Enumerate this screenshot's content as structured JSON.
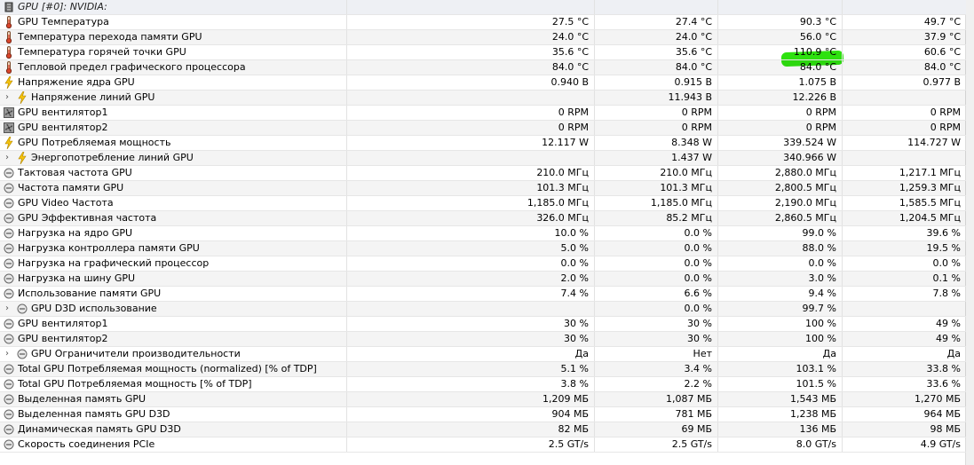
{
  "header": {
    "title": "GPU [#0]: NVIDIA:"
  },
  "icon_legend": {
    "chip": "gpu-chip-icon",
    "thermo": "thermometer-icon",
    "bolt": "lightning-icon",
    "fan": "fan-icon",
    "clock": "clock-icon"
  },
  "highlight_color": "#2ee10f",
  "rows": [
    {
      "name": "GPU Температура",
      "icon": "thermo",
      "expand": false,
      "v": [
        "27.5 °C",
        "27.4 °C",
        "90.3 °C",
        "49.7 °C"
      ]
    },
    {
      "name": "Температура перехода памяти GPU",
      "icon": "thermo",
      "expand": false,
      "v": [
        "24.0 °C",
        "24.0 °C",
        "56.0 °C",
        "37.9 °C"
      ]
    },
    {
      "name": "Температура горячей точки GPU",
      "icon": "thermo",
      "expand": false,
      "v": [
        "35.6 °C",
        "35.6 °C",
        "110.9 °C",
        "60.6 °C"
      ]
    },
    {
      "name": "Тепловой предел графического процессора",
      "icon": "thermo",
      "expand": false,
      "v": [
        "84.0 °C",
        "84.0 °C",
        "84.0 °C",
        "84.0 °C"
      ]
    },
    {
      "name": "Напряжение ядра GPU",
      "icon": "bolt",
      "expand": false,
      "v": [
        "0.940 В",
        "0.915 В",
        "1.075 В",
        "0.977 В"
      ]
    },
    {
      "name": "Напряжение линий GPU",
      "icon": "bolt",
      "expand": true,
      "v": [
        "",
        "11.943 В",
        "12.226 В",
        ""
      ]
    },
    {
      "name": "GPU вентилятор1",
      "icon": "fan",
      "expand": false,
      "v": [
        "0 RPM",
        "0 RPM",
        "0 RPM",
        "0 RPM"
      ]
    },
    {
      "name": "GPU вентилятор2",
      "icon": "fan",
      "expand": false,
      "v": [
        "0 RPM",
        "0 RPM",
        "0 RPM",
        "0 RPM"
      ]
    },
    {
      "name": "GPU Потребляемая мощность",
      "icon": "bolt",
      "expand": false,
      "v": [
        "12.117 W",
        "8.348 W",
        "339.524 W",
        "114.727 W"
      ]
    },
    {
      "name": "Энергопотребление линий GPU",
      "icon": "bolt",
      "expand": true,
      "v": [
        "",
        "1.437 W",
        "340.966 W",
        ""
      ]
    },
    {
      "name": "Тактовая частота GPU",
      "icon": "clock",
      "expand": false,
      "v": [
        "210.0 МГц",
        "210.0 МГц",
        "2,880.0 МГц",
        "1,217.1 МГц"
      ]
    },
    {
      "name": "Частота памяти GPU",
      "icon": "clock",
      "expand": false,
      "v": [
        "101.3 МГц",
        "101.3 МГц",
        "2,800.5 МГц",
        "1,259.3 МГц"
      ]
    },
    {
      "name": "GPU Video Частота",
      "icon": "clock",
      "expand": false,
      "v": [
        "1,185.0 МГц",
        "1,185.0 МГц",
        "2,190.0 МГц",
        "1,585.5 МГц"
      ]
    },
    {
      "name": "GPU Эффективная частота",
      "icon": "clock",
      "expand": false,
      "v": [
        "326.0 МГц",
        "85.2 МГц",
        "2,860.5 МГц",
        "1,204.5 МГц"
      ]
    },
    {
      "name": "Нагрузка на ядро GPU",
      "icon": "clock",
      "expand": false,
      "v": [
        "10.0 %",
        "0.0 %",
        "99.0 %",
        "39.6 %"
      ]
    },
    {
      "name": "Нагрузка контроллера памяти GPU",
      "icon": "clock",
      "expand": false,
      "v": [
        "5.0 %",
        "0.0 %",
        "88.0 %",
        "19.5 %"
      ]
    },
    {
      "name": "Нагрузка на графический процессор",
      "icon": "clock",
      "expand": false,
      "v": [
        "0.0 %",
        "0.0 %",
        "0.0 %",
        "0.0 %"
      ]
    },
    {
      "name": "Нагрузка на шину GPU",
      "icon": "clock",
      "expand": false,
      "v": [
        "2.0 %",
        "0.0 %",
        "3.0 %",
        "0.1 %"
      ]
    },
    {
      "name": "Использование памяти GPU",
      "icon": "clock",
      "expand": false,
      "v": [
        "7.4 %",
        "6.6 %",
        "9.4 %",
        "7.8 %"
      ]
    },
    {
      "name": "GPU D3D использование",
      "icon": "clock",
      "expand": true,
      "v": [
        "",
        "0.0 %",
        "99.7 %",
        ""
      ]
    },
    {
      "name": "GPU вентилятор1",
      "icon": "clock",
      "expand": false,
      "v": [
        "30 %",
        "30 %",
        "100 %",
        "49 %"
      ]
    },
    {
      "name": "GPU вентилятор2",
      "icon": "clock",
      "expand": false,
      "v": [
        "30 %",
        "30 %",
        "100 %",
        "49 %"
      ]
    },
    {
      "name": "GPU Ограничители производительности",
      "icon": "clock",
      "expand": true,
      "v": [
        "Да",
        "Нет",
        "Да",
        "Да"
      ]
    },
    {
      "name": "Total GPU Потребляемая мощность (normalized) [% of TDP]",
      "icon": "clock",
      "expand": false,
      "v": [
        "5.1 %",
        "3.4 %",
        "103.1 %",
        "33.8 %"
      ]
    },
    {
      "name": "Total GPU Потребляемая мощность [% of TDP]",
      "icon": "clock",
      "expand": false,
      "v": [
        "3.8 %",
        "2.2 %",
        "101.5 %",
        "33.6 %"
      ]
    },
    {
      "name": "Выделенная память GPU",
      "icon": "clock",
      "expand": false,
      "v": [
        "1,209 МБ",
        "1,087 МБ",
        "1,543 МБ",
        "1,270 МБ"
      ]
    },
    {
      "name": "Выделенная память GPU D3D",
      "icon": "clock",
      "expand": false,
      "v": [
        "904 МБ",
        "781 МБ",
        "1,238 МБ",
        "964 МБ"
      ]
    },
    {
      "name": "Динамическая память GPU D3D",
      "icon": "clock",
      "expand": false,
      "v": [
        "82 МБ",
        "69 МБ",
        "136 МБ",
        "98 МБ"
      ]
    },
    {
      "name": "Скорость соединения PCIe",
      "icon": "clock",
      "expand": false,
      "v": [
        "2.5 GT/s",
        "2.5 GT/s",
        "8.0 GT/s",
        "4.9 GT/s"
      ]
    }
  ]
}
